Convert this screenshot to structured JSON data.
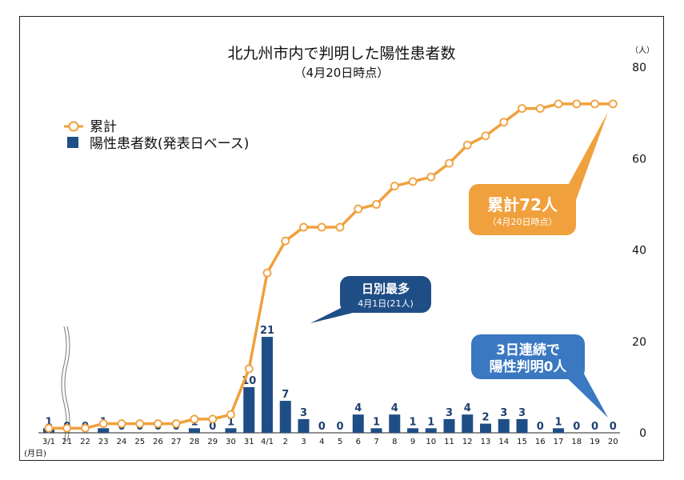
{
  "chart_data": {
    "type": "bar+line",
    "title": "北九州市内で判明した陽性患者数",
    "subtitle": "（4月20日時点）",
    "y_unit": "（人）",
    "x_unit": "(月日)",
    "ylim": [
      0,
      80
    ],
    "yticks": [
      "0",
      "20",
      "40",
      "60",
      "80"
    ],
    "categories": [
      "3/1",
      "21",
      "22",
      "23",
      "24",
      "25",
      "26",
      "27",
      "28",
      "29",
      "30",
      "31",
      "4/1",
      "2",
      "3",
      "4",
      "5",
      "6",
      "7",
      "8",
      "9",
      "10",
      "11",
      "12",
      "13",
      "14",
      "15",
      "16",
      "17",
      "18",
      "19",
      "20"
    ],
    "series": [
      {
        "name": "陽性患者数(発表日ベース)",
        "kind": "bar",
        "values": [
          1,
          0,
          0,
          1,
          0,
          0,
          0,
          0,
          1,
          0,
          1,
          10,
          21,
          7,
          3,
          0,
          0,
          4,
          1,
          4,
          1,
          1,
          3,
          4,
          2,
          3,
          3,
          0,
          1,
          0,
          0,
          0
        ]
      },
      {
        "name": "累計",
        "kind": "line",
        "values": [
          1,
          1,
          1,
          2,
          2,
          2,
          2,
          2,
          3,
          3,
          4,
          14,
          35,
          42,
          45,
          45,
          45,
          49,
          50,
          54,
          55,
          56,
          59,
          63,
          65,
          68,
          71,
          71,
          72,
          72,
          72,
          72
        ]
      }
    ],
    "legend": [
      {
        "label": "累計",
        "kind": "line"
      },
      {
        "label": "陽性患者数(発表日ベース)",
        "kind": "bar"
      }
    ],
    "legend_position": "top-left",
    "annotations": {
      "total": {
        "line1": "累計72人",
        "line2": "（4月20日時点）"
      },
      "max": {
        "line1": "日別最多",
        "line2": "4月1日(21人)"
      },
      "zero": {
        "line1": "3日連続で",
        "line2": "陽性判明0人"
      }
    },
    "colors": {
      "line": "#F0A03C",
      "bar": "#1F4E86",
      "label": "#1F3F6E",
      "total_box": "#F0A03C",
      "max_box": "#1F4E86",
      "zero_box": "#3A78C2"
    }
  }
}
